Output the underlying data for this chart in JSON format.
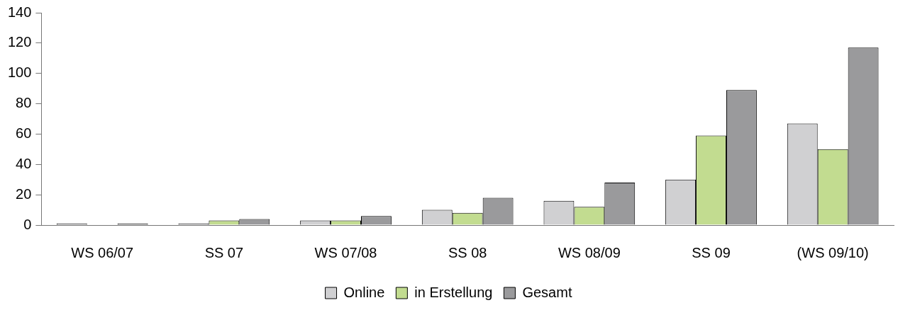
{
  "chart_data": {
    "type": "bar",
    "categories": [
      "WS 06/07",
      "SS 07",
      "WS 07/08",
      "SS 08",
      "WS 08/09",
      "SS 09",
      "(WS 09/10)"
    ],
    "series": [
      {
        "name": "Online",
        "color": "#d0d0d2",
        "values": [
          1,
          1,
          3,
          10,
          16,
          30,
          67
        ]
      },
      {
        "name": "in Erstellung",
        "color": "#c2dc90",
        "values": [
          0,
          3,
          3,
          8,
          12,
          59,
          50
        ]
      },
      {
        "name": "Gesamt",
        "color": "#9a9a9c",
        "values": [
          1,
          4,
          6,
          18,
          28,
          89,
          117
        ]
      }
    ],
    "ylim": [
      0,
      140
    ],
    "yticks": [
      0,
      20,
      40,
      60,
      80,
      100,
      120,
      140
    ],
    "grid": false,
    "legend": "bottom"
  }
}
